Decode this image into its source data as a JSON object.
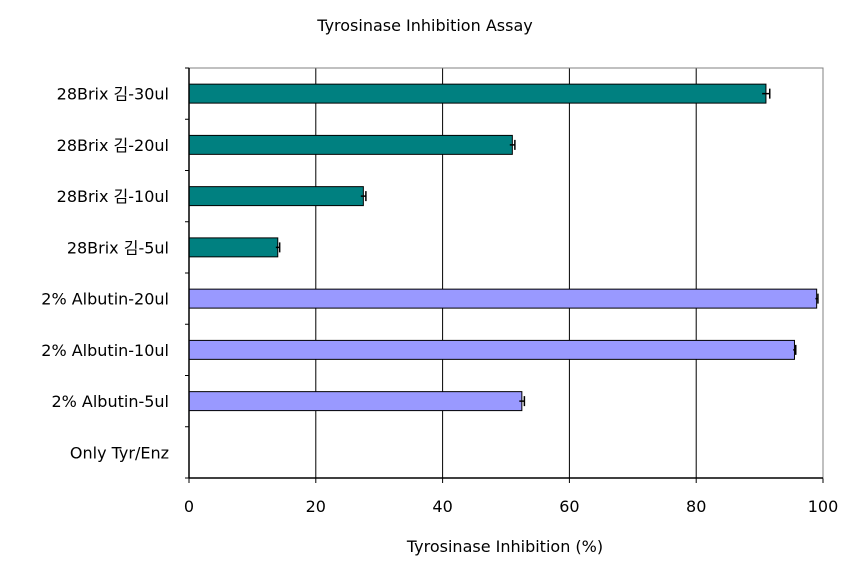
{
  "chart_data": {
    "type": "bar",
    "orientation": "horizontal",
    "title": "Tyrosinase Inhibition Assay",
    "xlabel": "Tyrosinase Inhibition (%)",
    "ylabel": "",
    "xlim": [
      0,
      100
    ],
    "xticks": [
      "0",
      "20",
      "40",
      "60",
      "80",
      "100"
    ],
    "grid": "vertical",
    "legend": "none",
    "categories": [
      "28Brix 김-30ul",
      "28Brix 김-20ul",
      "28Brix 김-10ul",
      "28Brix 김-5ul",
      "2% Albutin-20ul",
      "2% Albutin-10ul",
      "2% Albutin-5ul",
      "Only Tyr/Enz"
    ],
    "values": [
      91,
      51,
      27.5,
      14,
      99,
      95.5,
      52.5,
      0
    ],
    "errors": [
      0.6,
      0.4,
      0.4,
      0.3,
      0.2,
      0.2,
      0.4,
      0
    ],
    "colors": [
      "#008080",
      "#008080",
      "#008080",
      "#008080",
      "#9999ff",
      "#9999ff",
      "#9999ff",
      "#9999ff"
    ]
  }
}
